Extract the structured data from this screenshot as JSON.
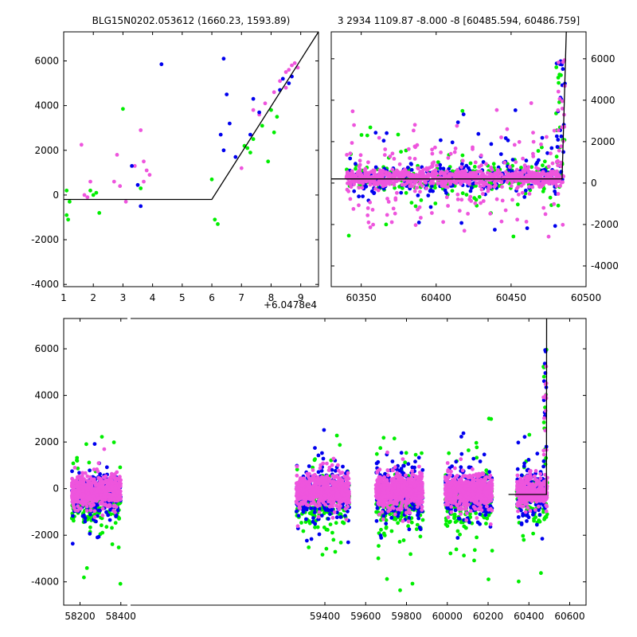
{
  "colors": {
    "green": "#00ee00",
    "blue": "#0000ee",
    "magenta": "#ee55dd",
    "model": "#000000"
  },
  "chart_data": [
    {
      "type": "scatter",
      "panel": "top-left",
      "title": "BLG15N0202.053612 (1660.23, 1593.89)",
      "xlim": [
        1,
        9.6
      ],
      "ylim": [
        -4100,
        7300
      ],
      "xticks": [
        1,
        2,
        3,
        4,
        5,
        6,
        7,
        8,
        9
      ],
      "yticks": [
        -4000,
        -2000,
        0,
        2000,
        4000,
        6000
      ],
      "x_offset_label": "+6.0478e4",
      "yaxis_side": "left",
      "series": [
        {
          "color": "magenta",
          "points": [
            [
              1.6,
              2250
            ],
            [
              1.7,
              0
            ],
            [
              1.8,
              -100
            ],
            [
              1.9,
              600
            ],
            [
              2.7,
              600
            ],
            [
              2.8,
              1800
            ],
            [
              2.9,
              400
            ],
            [
              3.1,
              -300
            ],
            [
              3.4,
              1300
            ],
            [
              3.6,
              2900
            ],
            [
              3.7,
              1500
            ],
            [
              3.8,
              1100
            ],
            [
              3.9,
              900
            ],
            [
              3.7,
              600
            ],
            [
              7.0,
              1200
            ],
            [
              7.4,
              3800
            ],
            [
              7.6,
              3600
            ],
            [
              7.8,
              4100
            ],
            [
              8.1,
              4600
            ],
            [
              8.5,
              5500
            ],
            [
              8.6,
              5600
            ],
            [
              8.7,
              5800
            ],
            [
              8.8,
              5900
            ],
            [
              8.9,
              5700
            ],
            [
              8.3,
              5100
            ],
            [
              8.5,
              4800
            ]
          ]
        },
        {
          "color": "blue",
          "points": [
            [
              3.3,
              1300
            ],
            [
              3.5,
              450
            ],
            [
              3.6,
              -500
            ],
            [
              4.3,
              5850
            ],
            [
              6.3,
              2700
            ],
            [
              6.4,
              2000
            ],
            [
              6.4,
              6100
            ],
            [
              6.5,
              4500
            ],
            [
              6.6,
              3200
            ],
            [
              6.8,
              1700
            ],
            [
              7.3,
              2700
            ],
            [
              7.4,
              4300
            ],
            [
              7.6,
              3700
            ],
            [
              8.3,
              4700
            ],
            [
              8.4,
              5200
            ],
            [
              8.6,
              5000
            ],
            [
              8.7,
              5300
            ]
          ]
        },
        {
          "color": "green",
          "points": [
            [
              1.1,
              200
            ],
            [
              1.1,
              -900
            ],
            [
              1.15,
              -1100
            ],
            [
              1.2,
              -300
            ],
            [
              1.9,
              200
            ],
            [
              2.0,
              0
            ],
            [
              2.1,
              100
            ],
            [
              2.2,
              -800
            ],
            [
              3.0,
              3850
            ],
            [
              3.6,
              300
            ],
            [
              6.1,
              -1100
            ],
            [
              6.2,
              -1300
            ],
            [
              6.0,
              700
            ],
            [
              7.1,
              2200
            ],
            [
              7.2,
              2100
            ],
            [
              7.3,
              1900
            ],
            [
              7.4,
              2500
            ],
            [
              7.7,
              3100
            ],
            [
              7.9,
              1500
            ],
            [
              8.0,
              3800
            ],
            [
              8.1,
              2800
            ],
            [
              8.2,
              3500
            ]
          ]
        }
      ],
      "model_line": [
        [
          1,
          -200
        ],
        [
          6.0,
          -200
        ],
        [
          9.6,
          7300
        ]
      ]
    },
    {
      "type": "scatter",
      "panel": "top-right",
      "title": "3 2934 1109.87 -8.000 -8 [60485.594, 60486.759]",
      "xlim": [
        60330,
        60500
      ],
      "ylim": [
        -5000,
        7300
      ],
      "xticks": [
        60350,
        60400,
        60450,
        60500
      ],
      "yticks": [
        -4000,
        -2000,
        0,
        2000,
        4000,
        6000
      ],
      "yaxis_side": "right",
      "model_line": [
        [
          60330,
          200
        ],
        [
          60484,
          200
        ],
        [
          60486.8,
          7300
        ]
      ],
      "scatter_spec": {
        "x_range": [
          60340,
          60485
        ],
        "core_sd": 350,
        "spread_sd": 1400
      }
    },
    {
      "type": "scatter",
      "panel": "bottom",
      "xlim": [
        58120,
        60680
      ],
      "ylim": [
        -5000,
        7300
      ],
      "xticks": [
        58200,
        58400,
        59400,
        59600,
        59800,
        60000,
        60200,
        60400,
        60600
      ],
      "yticks": [
        -4000,
        -2000,
        0,
        2000,
        4000,
        6000
      ],
      "yaxis_side": "left",
      "axis_break_x": 58440,
      "seasons": [
        [
          58160,
          58400
        ],
        [
          59260,
          59520
        ],
        [
          59650,
          59880
        ],
        [
          59990,
          60220
        ],
        [
          60340,
          60490
        ]
      ],
      "model_line": [
        [
          60300,
          -250
        ],
        [
          60486,
          -250
        ],
        [
          60487,
          7300
        ]
      ]
    }
  ]
}
